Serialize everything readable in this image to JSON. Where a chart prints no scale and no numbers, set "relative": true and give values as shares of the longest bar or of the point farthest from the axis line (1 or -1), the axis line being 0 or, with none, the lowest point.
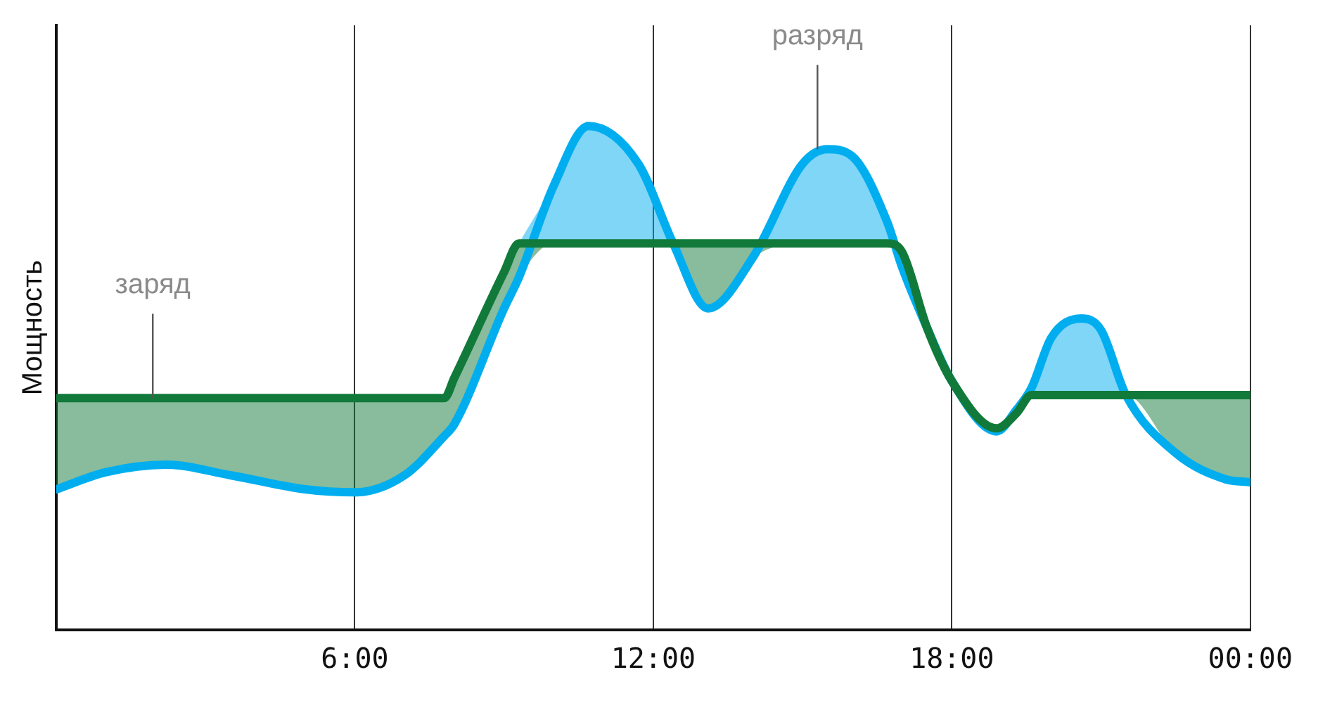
{
  "chart_data": {
    "type": "line",
    "relative": true,
    "ylabel": "Мощность",
    "x": [
      0,
      1,
      2.2,
      3.5,
      5,
      6,
      7,
      7.8,
      8,
      9,
      9.3,
      10,
      10.7,
      11.7,
      12.4,
      13.1,
      14,
      15,
      15.5,
      16,
      16.7,
      17,
      17.5,
      18,
      18.9,
      19.3,
      19.6,
      20,
      20.6,
      21,
      21.5,
      22.5,
      23.5,
      24
    ],
    "xlim": [
      0,
      24
    ],
    "xticks": [
      {
        "value": 6,
        "label": "6:00"
      },
      {
        "value": 12,
        "label": "12:00"
      },
      {
        "value": 18,
        "label": "18:00"
      },
      {
        "value": 24,
        "label": "00:00"
      }
    ],
    "grid": "x",
    "marker": "none",
    "series": [
      {
        "color": "#00aeef",
        "values": [
          0.279,
          0.313,
          0.328,
          0.307,
          0.279,
          0.273,
          0.307,
          0.385,
          0.408,
          0.638,
          0.7,
          0.882,
          1.0,
          0.925,
          0.767,
          0.638,
          0.739,
          0.925,
          0.954,
          0.94,
          0.81,
          0.72,
          0.6,
          0.494,
          0.394,
          0.437,
          0.48,
          0.58,
          0.618,
          0.595,
          0.466,
          0.351,
          0.299,
          0.293
        ],
        "lower": [
          0.46,
          0.46,
          0.46,
          0.46,
          0.46,
          0.46,
          0.46,
          0.46,
          0.5,
          0.71,
          0.767,
          0.767,
          0.767,
          0.767,
          0.767,
          0.767,
          0.767,
          0.767,
          0.767,
          0.767,
          0.767,
          0.75,
          0.6,
          0.494,
          0.4,
          0.43,
          0.466,
          0.466,
          0.466,
          0.466,
          0.466,
          0.466,
          0.466,
          0.466
        ],
        "upper": [
          0.46,
          0.46,
          0.46,
          0.46,
          0.46,
          0.46,
          0.46,
          0.46,
          0.5,
          0.71,
          0.767,
          0.882,
          1.0,
          0.925,
          0.767,
          0.767,
          0.767,
          0.925,
          0.954,
          0.94,
          0.81,
          0.75,
          0.6,
          0.494,
          0.4,
          0.437,
          0.48,
          0.58,
          0.618,
          0.595,
          0.466,
          0.466,
          0.466,
          0.466
        ]
      },
      {
        "color": "#117a3a",
        "values": [
          0.46,
          0.46,
          0.46,
          0.46,
          0.46,
          0.46,
          0.46,
          0.46,
          0.5,
          0.71,
          0.767,
          0.767,
          0.767,
          0.767,
          0.767,
          0.767,
          0.767,
          0.767,
          0.767,
          0.767,
          0.767,
          0.75,
          0.6,
          0.494,
          0.4,
          0.43,
          0.466,
          0.466,
          0.466,
          0.466,
          0.466,
          0.466,
          0.466,
          0.466
        ],
        "lower": [
          0.279,
          0.313,
          0.328,
          0.307,
          0.279,
          0.273,
          0.307,
          0.385,
          0.408,
          0.638,
          0.7,
          0.767,
          0.767,
          0.767,
          0.767,
          0.638,
          0.739,
          0.767,
          0.767,
          0.767,
          0.767,
          0.72,
          0.6,
          0.494,
          0.394,
          0.43,
          0.466,
          0.466,
          0.466,
          0.466,
          0.466,
          0.351,
          0.299,
          0.293
        ],
        "upper": [
          0.46,
          0.46,
          0.46,
          0.46,
          0.46,
          0.46,
          0.46,
          0.46,
          0.5,
          0.71,
          0.767,
          0.767,
          0.767,
          0.767,
          0.767,
          0.767,
          0.767,
          0.767,
          0.767,
          0.767,
          0.767,
          0.75,
          0.6,
          0.494,
          0.4,
          0.43,
          0.466,
          0.466,
          0.466,
          0.466,
          0.466,
          0.466,
          0.466,
          0.466
        ]
      }
    ],
    "annotations": [
      {
        "text": "заряд",
        "x": 1.94,
        "y": 0.46
      },
      {
        "text": "разряд",
        "x": 15.3,
        "y": 0.954
      }
    ]
  }
}
